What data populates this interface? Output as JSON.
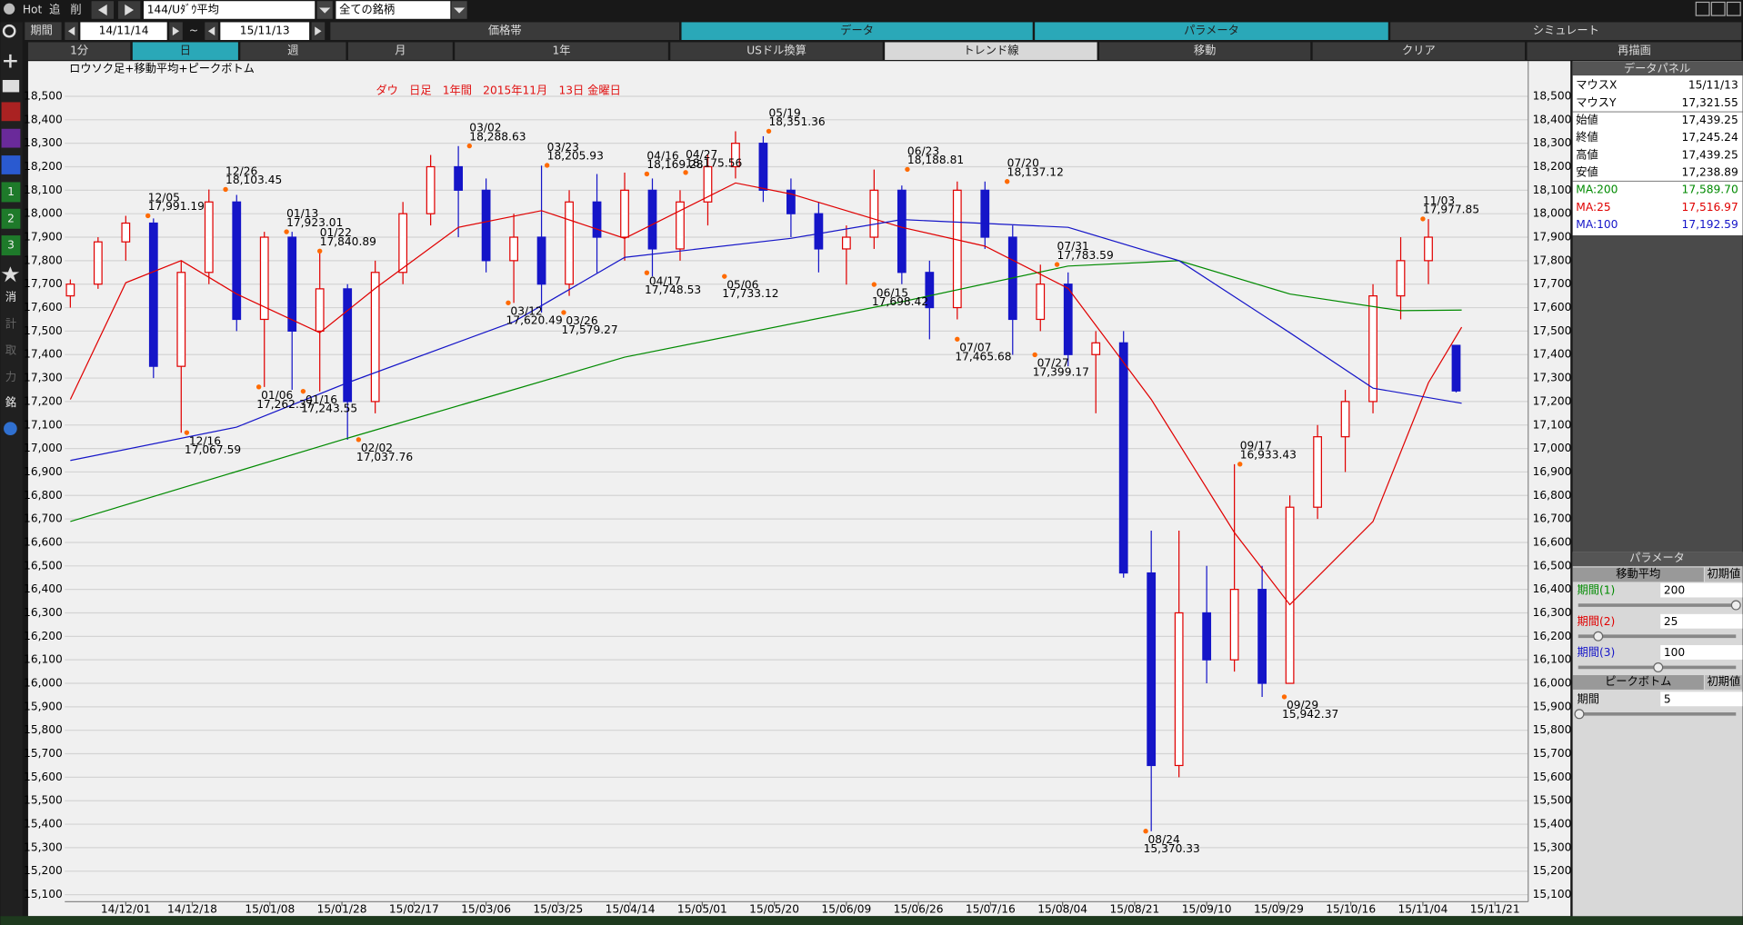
{
  "toolbar": {
    "hot": "Hot",
    "add": "追",
    "del": "削",
    "symbol": "144/Uﾀﾞｳ平均",
    "universe": "全ての銘柄",
    "period_label": "期間",
    "from": "14/11/14",
    "tilde": "~",
    "to": "15/11/13",
    "tabs": [
      "価格帯",
      "データ",
      "パラメータ",
      "シミュレート"
    ],
    "buttons": [
      "1分",
      "日",
      "週",
      "月",
      "1年",
      "USドル換算",
      "トレンド線",
      "移動",
      "クリア",
      "再描画"
    ]
  },
  "sidebar": [
    "1",
    "2",
    "3",
    "消",
    "計",
    "取",
    "力",
    "銘"
  ],
  "chart_data": {
    "type": "candlestick",
    "title": "ダウ　日足　1年間　2015年11月　13日 金曜日",
    "subtitle": "ロウソク足+移動平均+ピークボトム",
    "x": [
      0,
      5,
      10,
      15,
      20,
      25,
      30,
      35,
      40,
      45,
      50,
      55,
      60,
      65,
      70,
      75,
      80,
      85,
      90,
      95,
      100,
      105,
      110,
      115,
      120,
      125,
      130,
      135,
      140,
      145,
      150,
      155,
      160,
      165,
      170,
      175,
      180,
      185,
      190,
      195,
      200,
      205,
      210,
      215,
      220,
      225,
      230,
      235,
      240,
      245,
      250
    ],
    "open": [
      17650,
      17700,
      17880,
      17960,
      17350,
      17750,
      18050,
      17550,
      17900,
      17500,
      17680,
      17200,
      17750,
      18000,
      18200,
      18100,
      17800,
      17900,
      17700,
      18050,
      17900,
      18100,
      17850,
      18050,
      18200,
      18300,
      18100,
      18000,
      17850,
      17900,
      18100,
      17750,
      17600,
      18100,
      17900,
      17550,
      17700,
      17400,
      17450,
      16470,
      15650,
      16300,
      16100,
      16400,
      16000,
      16750,
      17050,
      17200,
      17650,
      17800,
      17439.25
    ],
    "high": [
      17720,
      17900,
      17991,
      17980,
      17800,
      18103,
      18080,
      17923,
      17923,
      17840,
      17700,
      17800,
      18050,
      18250,
      18288,
      18150,
      18000,
      18205,
      18100,
      18169,
      18175,
      18150,
      18100,
      18250,
      18351,
      18330,
      18150,
      18050,
      17950,
      18188,
      18120,
      17800,
      18137,
      18137,
      17950,
      17783,
      17750,
      17500,
      17500,
      16650,
      16650,
      16500,
      16933,
      16500,
      16800,
      17100,
      17250,
      17700,
      17900,
      17977,
      17439.25
    ],
    "low": [
      17600,
      17680,
      17800,
      17300,
      17067,
      17700,
      17500,
      17262,
      17250,
      17243,
      17037,
      17150,
      17700,
      17950,
      17900,
      17750,
      17620,
      17579,
      17650,
      17748,
      17800,
      17733,
      17800,
      17950,
      18150,
      18050,
      17900,
      17750,
      17698,
      17850,
      17700,
      17465,
      17550,
      17850,
      17399,
      17500,
      17350,
      17150,
      16450,
      15370,
      15600,
      16000,
      16050,
      15942,
      16000,
      16700,
      16900,
      17150,
      17550,
      17700,
      17238.89
    ],
    "close": [
      17700,
      17880,
      17960,
      17350,
      17750,
      18050,
      17550,
      17900,
      17500,
      17680,
      17200,
      17750,
      18000,
      18200,
      18100,
      17800,
      17900,
      17700,
      18050,
      17900,
      18100,
      17850,
      18050,
      18200,
      18300,
      18100,
      18000,
      17850,
      17900,
      18100,
      17750,
      17600,
      18100,
      17900,
      17550,
      17700,
      17400,
      17450,
      16470,
      15650,
      16300,
      16100,
      16400,
      16000,
      16750,
      17050,
      17200,
      17650,
      17800,
      17900,
      17245.24
    ],
    "up_color": "#e00000",
    "down_color": "#1515c8",
    "series": [
      {
        "name": "MA:200",
        "color": "#008a00",
        "x": [
          0,
          50,
          100,
          150,
          180,
          200,
          220,
          240,
          251
        ],
        "values": [
          16689,
          17044,
          17389,
          17625,
          17777,
          17800,
          17658,
          17587,
          17589.7
        ]
      },
      {
        "name": "MA:25",
        "color": "#e00000",
        "x": [
          0,
          10,
          20,
          30,
          45,
          55,
          70,
          85,
          100,
          120,
          130,
          150,
          165,
          180,
          195,
          210,
          220,
          235,
          245,
          251
        ],
        "values": [
          17209,
          17706,
          17800,
          17658,
          17493,
          17682,
          17942,
          18013,
          17895,
          18131,
          18084,
          17942,
          17862,
          17682,
          17209,
          16642,
          16335,
          16689,
          17280,
          17516.97
        ]
      },
      {
        "name": "MA:100",
        "color": "#1515c8",
        "x": [
          0,
          30,
          50,
          80,
          100,
          130,
          150,
          180,
          200,
          220,
          235,
          251
        ],
        "values": [
          16949,
          17091,
          17280,
          17540,
          17814,
          17895,
          17975,
          17942,
          17800,
          17493,
          17257,
          17192.59
        ]
      }
    ],
    "peaks": [
      {
        "x": 14,
        "date": "12/05",
        "value": 17991.19,
        "label": "17,991.19"
      },
      {
        "x": 28,
        "date": "12/26",
        "value": 18103.45,
        "label": "18,103.45"
      },
      {
        "x": 39,
        "date": "01/13",
        "value": 17923.01,
        "label": "17,923.01"
      },
      {
        "x": 45,
        "date": "01/22",
        "value": 17840.89,
        "label": "17,840.89"
      },
      {
        "x": 72,
        "date": "03/02",
        "value": 18288.63,
        "label": "18,288.63"
      },
      {
        "x": 86,
        "date": "03/23",
        "value": 18205.93,
        "label": "18,205.93"
      },
      {
        "x": 104,
        "date": "04/16",
        "value": 18169.28,
        "label": "18,169.28"
      },
      {
        "x": 111,
        "date": "04/27",
        "value": 18175.56,
        "label": "18,175.56"
      },
      {
        "x": 126,
        "date": "05/19",
        "value": 18351.36,
        "label": "18,351.36"
      },
      {
        "x": 151,
        "date": "06/23",
        "value": 18188.81,
        "label": "18,188.81"
      },
      {
        "x": 169,
        "date": "07/20",
        "value": 18137.12,
        "label": "18,137.12"
      },
      {
        "x": 178,
        "date": "07/31",
        "value": 17783.59,
        "label": "17,783.59"
      },
      {
        "x": 211,
        "date": "09/17",
        "value": 16933.43,
        "label": "16,933.43"
      },
      {
        "x": 244,
        "date": "11/03",
        "value": 17977.85,
        "label": "17,977.85"
      }
    ],
    "bottoms": [
      {
        "x": 21,
        "date": "12/16",
        "value": 17067.59,
        "label": "17,067.59"
      },
      {
        "x": 34,
        "date": "01/06",
        "value": 17262.37,
        "label": "17,262.37"
      },
      {
        "x": 42,
        "date": "01/16",
        "value": 17243.55,
        "label": "17,243.55"
      },
      {
        "x": 52,
        "date": "02/02",
        "value": 17037.76,
        "label": "17,037.76"
      },
      {
        "x": 79,
        "date": "03/12",
        "value": 17620.49,
        "label": "17,620.49"
      },
      {
        "x": 89,
        "date": "03/26",
        "value": 17579.27,
        "label": "17,579.27"
      },
      {
        "x": 104,
        "date": "04/17",
        "value": 17748.53,
        "label": "17,748.53"
      },
      {
        "x": 118,
        "date": "05/06",
        "value": 17733.12,
        "label": "17,733.12"
      },
      {
        "x": 145,
        "date": "06/15",
        "value": 17698.42,
        "label": "17,698.42"
      },
      {
        "x": 160,
        "date": "07/07",
        "value": 17465.68,
        "label": "17,465.68"
      },
      {
        "x": 174,
        "date": "07/27",
        "value": 17399.17,
        "label": "17,399.17"
      },
      {
        "x": 194,
        "date": "08/24",
        "value": 15370.33,
        "label": "15,370.33"
      },
      {
        "x": 219,
        "date": "09/29",
        "value": 15942.37,
        "label": "15,942.37"
      }
    ],
    "xlim": [
      -1,
      263
    ],
    "ylim": [
      15070,
      18650
    ],
    "grid": true,
    "xticks": [
      {
        "value": 10,
        "label": "14/12/01"
      },
      {
        "value": 22,
        "label": "14/12/18"
      },
      {
        "value": 36,
        "label": "15/01/08"
      },
      {
        "value": 49,
        "label": "15/01/28"
      },
      {
        "value": 62,
        "label": "15/02/17"
      },
      {
        "value": 75,
        "label": "15/03/06"
      },
      {
        "value": 88,
        "label": "15/03/25"
      },
      {
        "value": 101,
        "label": "15/04/14"
      },
      {
        "value": 114,
        "label": "15/05/01"
      },
      {
        "value": 127,
        "label": "15/05/20"
      },
      {
        "value": 140,
        "label": "15/06/09"
      },
      {
        "value": 153,
        "label": "15/06/26"
      },
      {
        "value": 166,
        "label": "15/07/16"
      },
      {
        "value": 179,
        "label": "15/08/04"
      },
      {
        "value": 192,
        "label": "15/08/21"
      },
      {
        "value": 205,
        "label": "15/09/10"
      },
      {
        "value": 218,
        "label": "15/09/29"
      },
      {
        "value": 231,
        "label": "15/10/16"
      },
      {
        "value": 244,
        "label": "15/11/04"
      },
      {
        "value": 257,
        "label": "15/11/21"
      }
    ],
    "yticks": [
      {
        "value": 15100,
        "label": "15,100"
      },
      {
        "value": 15200,
        "label": "15,200"
      },
      {
        "value": 15300,
        "label": "15,300"
      },
      {
        "value": 15400,
        "label": "15,400"
      },
      {
        "value": 15500,
        "label": "15,500"
      },
      {
        "value": 15600,
        "label": "15,600"
      },
      {
        "value": 15700,
        "label": "15,700"
      },
      {
        "value": 15800,
        "label": "15,800"
      },
      {
        "value": 15900,
        "label": "15,900"
      },
      {
        "value": 16000,
        "label": "16,000"
      },
      {
        "value": 16100,
        "label": "16,100"
      },
      {
        "value": 16200,
        "label": "16,200"
      },
      {
        "value": 16300,
        "label": "16,300"
      },
      {
        "value": 16400,
        "label": "16,400"
      },
      {
        "value": 16500,
        "label": "16,500"
      },
      {
        "value": 16600,
        "label": "16,600"
      },
      {
        "value": 16700,
        "label": "16,700"
      },
      {
        "value": 16800,
        "label": "16,800"
      },
      {
        "value": 16900,
        "label": "16,900"
      },
      {
        "value": 17000,
        "label": "17,000"
      },
      {
        "value": 17100,
        "label": "17,100"
      },
      {
        "value": 17200,
        "label": "17,200"
      },
      {
        "value": 17300,
        "label": "17,300"
      },
      {
        "value": 17400,
        "label": "17,400"
      },
      {
        "value": 17500,
        "label": "17,500"
      },
      {
        "value": 17600,
        "label": "17,600"
      },
      {
        "value": 17700,
        "label": "17,700"
      },
      {
        "value": 17800,
        "label": "17,800"
      },
      {
        "value": 17900,
        "label": "17,900"
      },
      {
        "value": 18000,
        "label": "18,000"
      },
      {
        "value": 18100,
        "label": "18,100"
      },
      {
        "value": 18200,
        "label": "18,200"
      },
      {
        "value": 18300,
        "label": "18,300"
      },
      {
        "value": 18400,
        "label": "18,400"
      },
      {
        "value": 18500,
        "label": "18,500"
      }
    ]
  },
  "data_panel": {
    "title": "データパネル",
    "rows": [
      [
        "マウスX",
        "15/11/13"
      ],
      [
        "マウスY",
        "17,321.55"
      ],
      [
        "始値",
        "17,439.25"
      ],
      [
        "終値",
        "17,245.24"
      ],
      [
        "高値",
        "17,439.25"
      ],
      [
        "安値",
        "17,238.89"
      ]
    ],
    "ma_values": [
      "17,589.70",
      "17,516.97",
      "17,192.59"
    ]
  },
  "param_panel": {
    "title": "パラメータ",
    "ma_section": "移動平均",
    "reset": "初期値",
    "ma_periods": [
      [
        "期間(1)",
        "200"
      ],
      [
        "期間(2)",
        "25"
      ],
      [
        "期間(3)",
        "100"
      ]
    ],
    "pb_section": "ピークボトム",
    "pb_reset": "初期値",
    "pb_period": [
      "期間",
      "5"
    ]
  }
}
